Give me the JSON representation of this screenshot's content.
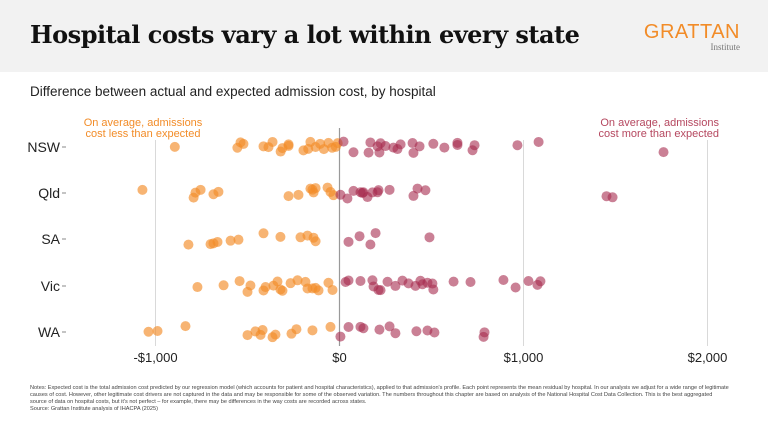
{
  "header": {
    "title": "Hospital costs vary a lot within every state",
    "logo_main": "GRATTAN",
    "logo_sub": "Institute"
  },
  "subtitle": "Difference between actual and expected admission cost, by hospital",
  "annotations": {
    "left_line1": "On average, admissions",
    "left_line2": "cost less than expected",
    "right_line1": "On average, admissions",
    "right_line2": "cost more than expected"
  },
  "notes": "Notes: Expected cost is the total admission cost predicted by our regression model (which accounts for patient and hospital characteristics), applied to that admission's profile. Each point represents the mean residual by hospital. In our analysis we adjust for a wide range of legitimate causes of cost. However, other legitimate cost drivers are not captured in the data and may be responsible for some of the observed variation. The numbers throughout this chapter are based on analysis of the National Hospital Cost Data Collection. This is the best aggregated source of data on hospital costs, but it's not perfect – for example, there may be differences in the way costs are recorded across states.",
  "source": "Source: Grattan Institute analysis of IHACPA (2025)",
  "colors": {
    "below": "#f28c28",
    "above": "#a62b4f",
    "grid": "#d9d9d9",
    "zero": "#999999"
  },
  "chart_data": {
    "type": "scatter",
    "subtype": "strip plot",
    "title": "",
    "xlabel": "",
    "ylabel": "",
    "xlim": [
      -1450,
      2100
    ],
    "x_ticks": [
      -1000,
      0,
      1000,
      2000
    ],
    "x_tick_labels": [
      "-$1,000",
      "$0",
      "$1,000",
      "$2,000"
    ],
    "grid": "vertical",
    "categories": [
      "NSW",
      "Qld",
      "SA",
      "Vic",
      "WA"
    ],
    "series": [
      {
        "category": "NSW",
        "values": [
          -895,
          -555,
          -538,
          -522,
          -413,
          -386,
          -364,
          -320,
          -310,
          -277,
          -277,
          -196,
          -170,
          -158,
          -130,
          -105,
          -85,
          -60,
          -40,
          -20,
          -10,
          22,
          76,
          158,
          168,
          207,
          217,
          223,
          250,
          293,
          315,
          332,
          397,
          402,
          435,
          510,
          570,
          641,
          641,
          723,
          734,
          967,
          1082,
          1761
        ]
      },
      {
        "category": "Qld",
        "values": [
          -1071,
          -793,
          -783,
          -755,
          -685,
          -658,
          -277,
          -223,
          -158,
          -147,
          -141,
          -130,
          -65,
          -49,
          -33,
          5,
          43,
          76,
          114,
          125,
          130,
          152,
          179,
          207,
          212,
          272,
          402,
          424,
          467,
          1451,
          1484
        ]
      },
      {
        "category": "SA",
        "values": [
          -821,
          -701,
          -685,
          -663,
          -592,
          -549,
          -413,
          -321,
          -212,
          -174,
          -141,
          -130,
          49,
          109,
          168,
          196,
          489
        ]
      },
      {
        "category": "Vic",
        "values": [
          -772,
          -630,
          -543,
          -500,
          -484,
          -413,
          -402,
          -359,
          -337,
          -321,
          -310,
          -266,
          -228,
          -185,
          -174,
          -147,
          -130,
          -114,
          -60,
          -38,
          33,
          49,
          114,
          179,
          185,
          212,
          223,
          261,
          304,
          342,
          375,
          413,
          440,
          451,
          478,
          505,
          510,
          620,
          712,
          891,
          957,
          1027,
          1076,
          1092
        ]
      },
      {
        "category": "WA",
        "values": [
          -1038,
          -989,
          -837,
          -500,
          -457,
          -429,
          -418,
          -364,
          -348,
          -261,
          -234,
          -147,
          -49,
          5,
          49,
          114,
          130,
          217,
          272,
          304,
          418,
          478,
          516,
          783,
          788
        ]
      }
    ]
  }
}
